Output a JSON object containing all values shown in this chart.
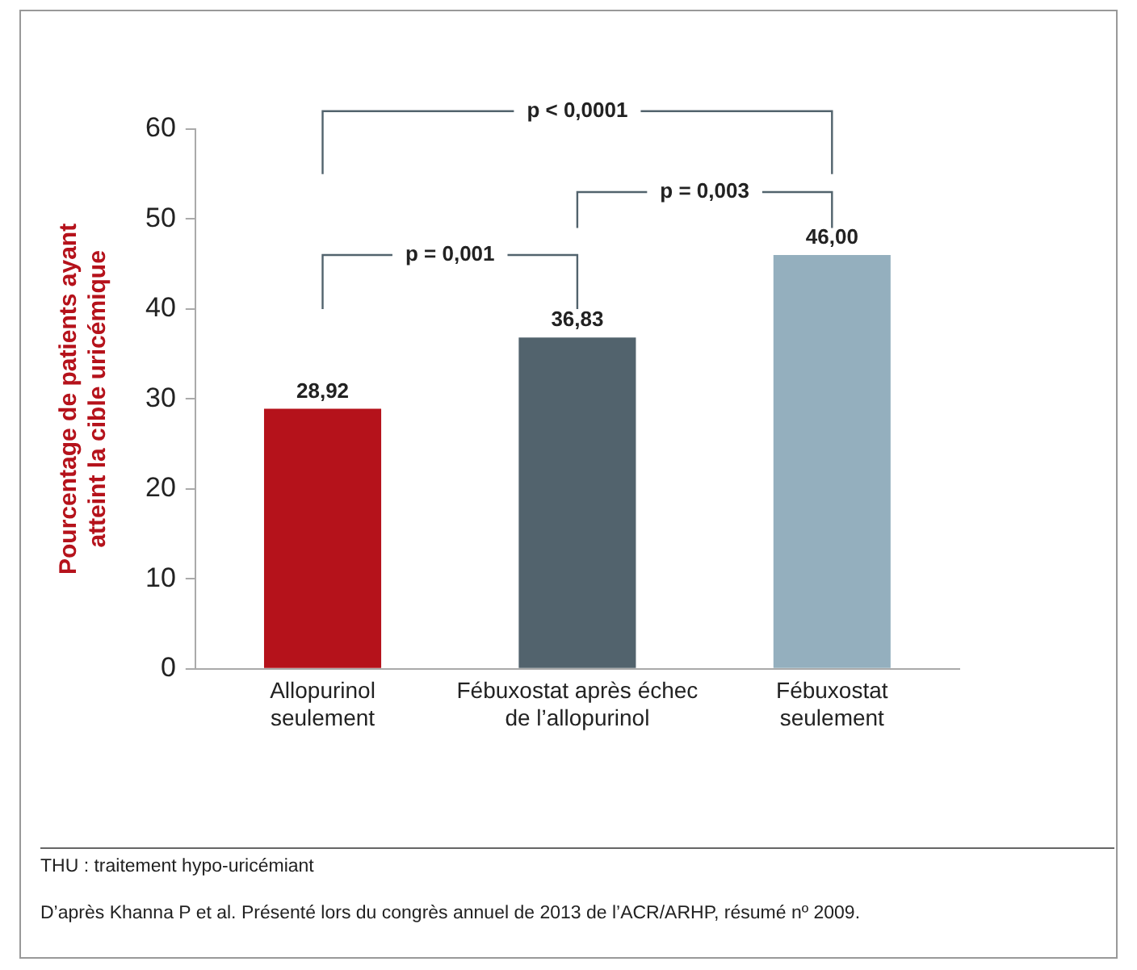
{
  "chart_data": {
    "type": "bar",
    "ylabel": "Pourcentage de patients ayant\natteint la cible uricémique",
    "categories": [
      "Allopurinol\nseulement",
      "Fébuxostat après échec\nde l’allopurinol",
      "Fébuxostat\nseulement"
    ],
    "values": [
      28.92,
      36.83,
      46.0
    ],
    "value_labels": [
      "28,92",
      "36,83",
      "46,00"
    ],
    "colors": [
      "#b5121b",
      "#52636d",
      "#94afbe"
    ],
    "ylim": [
      0,
      60
    ],
    "yticks": [
      0,
      10,
      20,
      30,
      40,
      50,
      60
    ],
    "grid": false,
    "legend": false,
    "annotations": [
      "p < 0,0001",
      "p = 0,003",
      "p = 0,001",
      "THU : traitement hypo-uricémiant",
      "D’après Khanna P et al. Présenté lors du congrès annuel de 2013 de l’ACR/ARHP, résumé nº 2009."
    ]
  }
}
